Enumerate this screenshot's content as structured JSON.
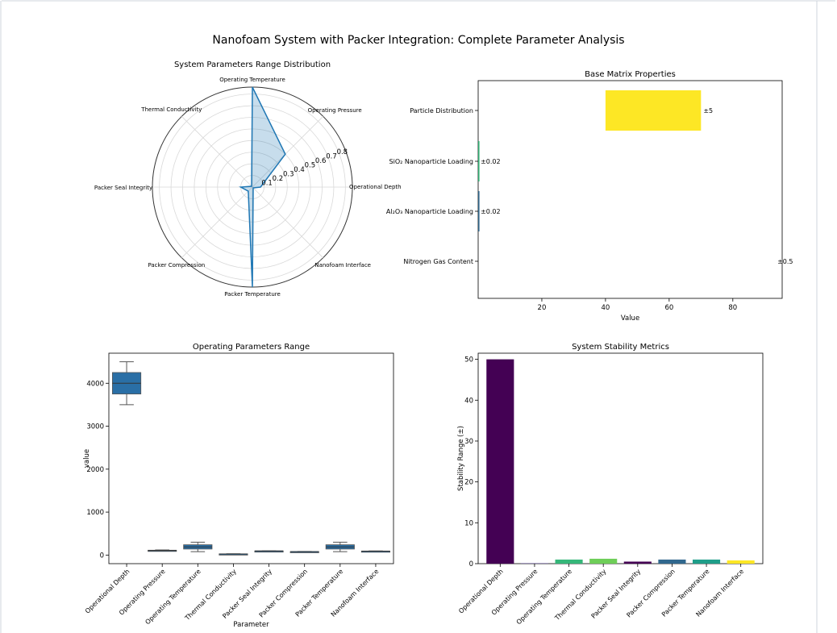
{
  "figure": {
    "title": "Nanofoam System with Packer Integration: Complete Parameter Analysis"
  },
  "chart_data": [
    {
      "type": "radar",
      "title": "System Parameters Range Distribution",
      "categories": [
        "Operational Depth",
        "Operating Pressure",
        "Operating Temperature",
        "Thermal Conductivity",
        "Packer Seal Integrity",
        "Packer Compression",
        "Packer Temperature",
        "Nanofoam Interface"
      ],
      "values": [
        0.07,
        0.4,
        0.86,
        0.01,
        0.1,
        0.05,
        0.86,
        0.01
      ],
      "rticks": [
        0.1,
        0.2,
        0.3,
        0.4,
        0.5,
        0.6,
        0.7,
        0.8
      ],
      "rlim": [
        0,
        0.86
      ],
      "color": "#1f77b4",
      "fill": "#1f77b4"
    },
    {
      "type": "bar",
      "orientation": "horizontal",
      "title": "Base Matrix Properties",
      "xlabel": "Value",
      "categories": [
        "Particle Distribution",
        "SiO₂ Nanoparticle Loading",
        "Al₂O₃ Nanoparticle Loading",
        "Nitrogen Gas Content"
      ],
      "ranges": [
        [
          40,
          70
        ],
        [
          0.02,
          0.1
        ],
        [
          0.02,
          0.1
        ],
        [
          94,
          94
        ]
      ],
      "labels": [
        "±5",
        "±0.02",
        "±0.02",
        "±0.5"
      ],
      "colors": [
        "#fde725",
        "#35b779",
        "#31688e",
        "#440154"
      ],
      "xticks": [
        20,
        40,
        60,
        80
      ],
      "xlim": [
        0,
        95.5
      ]
    },
    {
      "type": "boxplot",
      "title": "Operating Parameters Range",
      "xlabel": "Parameter",
      "ylabel": "value",
      "categories": [
        "Operational Depth",
        "Operating Pressure",
        "Operating Temperature",
        "Thermal Conductivity",
        "Packer Seal Integrity",
        "Packer Compression",
        "Packer Temperature",
        "Nanofoam Interface"
      ],
      "boxes": [
        {
          "min": 3500,
          "q1": 3750,
          "median": 4000,
          "q3": 4250,
          "max": 4500
        },
        {
          "min": 90,
          "q1": 97,
          "median": 105,
          "q3": 113,
          "max": 120
        },
        {
          "min": 80,
          "q1": 140,
          "median": 190,
          "q3": 240,
          "max": 300
        },
        {
          "min": 20,
          "q1": 22,
          "median": 25,
          "q3": 28,
          "max": 30
        },
        {
          "min": 90,
          "q1": 92,
          "median": 95,
          "q3": 97,
          "max": 99
        },
        {
          "min": 75,
          "q1": 78,
          "median": 80,
          "q3": 82,
          "max": 85
        },
        {
          "min": 80,
          "q1": 140,
          "median": 190,
          "q3": 240,
          "max": 300
        },
        {
          "min": 88,
          "q1": 90,
          "median": 92,
          "q3": 94,
          "max": 96
        }
      ],
      "color": "#2a6fa6",
      "yticks": [
        0,
        1000,
        2000,
        3000,
        4000
      ],
      "ylim": [
        -200,
        4700
      ]
    },
    {
      "type": "bar",
      "title": "System Stability Metrics",
      "ylabel": "Stability Range (±)",
      "categories": [
        "Operational Depth",
        "Operating Pressure",
        "Operating Temperature",
        "Thermal Conductivity",
        "Packer Seal Integrity",
        "Packer Compression",
        "Packer Temperature",
        "Nanofoam Interface"
      ],
      "values": [
        50,
        0.1,
        1.0,
        1.2,
        0.5,
        1.0,
        1.0,
        0.8
      ],
      "colors": [
        "#440154",
        "#46327e",
        "#35b779",
        "#6ece58",
        "#440154",
        "#31688e",
        "#1f9e89",
        "#fde725"
      ],
      "yticks": [
        0,
        10,
        20,
        30,
        40,
        50
      ],
      "ylim": [
        0,
        51.5
      ]
    }
  ]
}
